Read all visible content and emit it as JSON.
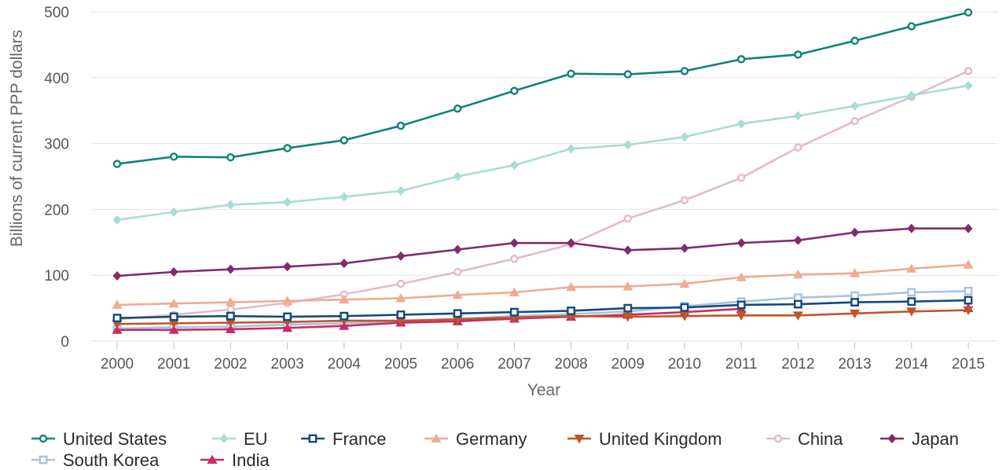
{
  "chart_data": {
    "type": "line",
    "title": "",
    "xlabel": "Year",
    "ylabel": "Billions of current PPP dollars",
    "x": [
      "2000",
      "2001",
      "2002",
      "2003",
      "2004",
      "2005",
      "2006",
      "2007",
      "2008",
      "2009",
      "2010",
      "2011",
      "2012",
      "2013",
      "2014",
      "2015"
    ],
    "ylim": [
      0,
      500
    ],
    "yticks": [
      0,
      100,
      200,
      300,
      400,
      500
    ],
    "grid": true,
    "legend_position": "bottom",
    "series": [
      {
        "name": "United States",
        "color": "#0e8278",
        "marker": "circle",
        "values": [
          269,
          280,
          279,
          293,
          305,
          327,
          353,
          380,
          406,
          405,
          410,
          428,
          435,
          456,
          478,
          499
        ]
      },
      {
        "name": "EU",
        "color": "#a8dcd5",
        "marker": "diamond",
        "values": [
          184,
          196,
          207,
          211,
          219,
          228,
          250,
          267,
          292,
          298,
          310,
          330,
          342,
          357,
          373,
          388
        ]
      },
      {
        "name": "France",
        "color": "#134a7d",
        "marker": "square",
        "values": [
          35,
          37,
          38,
          37,
          38,
          40,
          42,
          44,
          46,
          50,
          51,
          55,
          56,
          59,
          60,
          62
        ]
      },
      {
        "name": "Germany",
        "color": "#eeac91",
        "marker": "triangle-up",
        "values": [
          55,
          57,
          59,
          61,
          63,
          65,
          70,
          74,
          82,
          83,
          87,
          97,
          101,
          103,
          110,
          116
        ]
      },
      {
        "name": "United Kingdom",
        "color": "#c0552a",
        "marker": "triangle-down",
        "values": [
          26,
          27,
          28,
          29,
          31,
          31,
          33,
          36,
          38,
          37,
          38,
          39,
          39,
          42,
          45,
          47
        ]
      },
      {
        "name": "China",
        "color": "#e0bccb",
        "marker": "circle",
        "values": [
          33,
          40,
          48,
          58,
          71,
          87,
          105,
          125,
          147,
          186,
          214,
          248,
          294,
          334,
          371,
          410
        ]
      },
      {
        "name": "Japan",
        "color": "#7f2c6c",
        "marker": "diamond",
        "values": [
          99,
          105,
          109,
          113,
          118,
          129,
          139,
          149,
          149,
          138,
          141,
          149,
          153,
          165,
          171,
          171
        ]
      },
      {
        "name": "South Korea",
        "color": "#a8c3de",
        "marker": "square",
        "values": [
          19,
          21,
          22,
          25,
          27,
          30,
          34,
          38,
          41,
          45,
          53,
          60,
          66,
          69,
          74,
          76
        ]
      },
      {
        "name": "India",
        "color": "#c72b67",
        "marker": "triangle-up",
        "values": [
          17,
          17,
          18,
          20,
          23,
          28,
          30,
          34,
          37,
          40,
          44,
          49,
          null,
          null,
          null,
          50
        ]
      }
    ]
  }
}
